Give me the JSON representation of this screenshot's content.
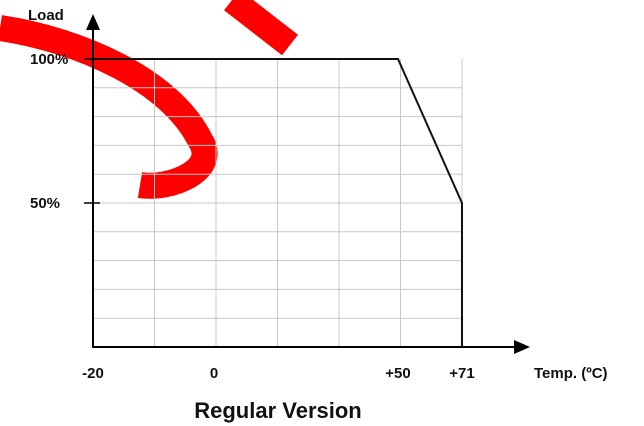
{
  "chart_data": {
    "type": "line",
    "title": "",
    "caption": "Regular Version",
    "xlabel": "Temp. (ºC)",
    "ylabel": "Load",
    "x_ticks": [
      "-20",
      "0",
      "+50",
      "+71"
    ],
    "y_ticks": [
      "100%",
      "50%"
    ],
    "xlim": [
      -20,
      71
    ],
    "ylim": [
      0,
      100
    ],
    "grid": true,
    "series": [
      {
        "x": [
          -20,
          50,
          71
        ],
        "y": [
          100,
          100,
          50
        ]
      }
    ]
  },
  "colors": {
    "line": "#111111",
    "grid": "#c8c8c8",
    "watermark": "#ff0000"
  }
}
